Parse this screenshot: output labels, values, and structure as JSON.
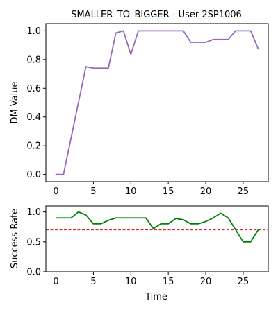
{
  "chart_data": [
    {
      "type": "line",
      "title": "SMALLER_TO_BIGGER - User 2SP1006",
      "xlabel": "",
      "ylabel": "DM Value",
      "xlim": [
        -1.35,
        28.35
      ],
      "ylim": [
        -0.05,
        1.05
      ],
      "xticks": [
        0,
        5,
        10,
        15,
        20,
        25
      ],
      "yticks": [
        0.0,
        0.2,
        0.4,
        0.6,
        0.8,
        1.0
      ],
      "ytick_labels": [
        "0.0",
        "0.2",
        "0.4",
        "0.6",
        "0.8",
        "1.0"
      ],
      "grid": false,
      "series": [
        {
          "color": "#9467bd",
          "x": [
            0,
            1,
            2,
            3,
            4,
            5,
            6,
            7,
            8,
            9,
            10,
            11,
            12,
            13,
            14,
            15,
            16,
            17,
            18,
            19,
            20,
            21,
            22,
            23,
            24,
            25,
            26,
            27
          ],
          "values": [
            0.0,
            0.0,
            0.25,
            0.5,
            0.75,
            0.74,
            0.74,
            0.74,
            0.985,
            1.0,
            0.835,
            1.0,
            1.0,
            1.0,
            1.0,
            1.0,
            1.0,
            1.0,
            0.92,
            0.92,
            0.92,
            0.94,
            0.94,
            0.94,
            1.0,
            1.0,
            1.0,
            0.875
          ]
        }
      ]
    },
    {
      "type": "line",
      "title": "",
      "xlabel": "Time",
      "ylabel": "Success Rate",
      "xlim": [
        -1.35,
        28.35
      ],
      "ylim": [
        0.0,
        1.1
      ],
      "xticks": [
        0,
        5,
        10,
        15,
        20,
        25
      ],
      "yticks": [
        0.0,
        0.5,
        1.0
      ],
      "ytick_labels": [
        "0.0",
        "0.5",
        "1.0"
      ],
      "grid": false,
      "threshold": {
        "value": 0.7,
        "color": "#d62728",
        "style": "dashed"
      },
      "series": [
        {
          "color": "#008000",
          "x": [
            0,
            1,
            2,
            3,
            4,
            5,
            6,
            7,
            8,
            9,
            10,
            11,
            12,
            13,
            14,
            15,
            16,
            17,
            18,
            19,
            20,
            21,
            22,
            23,
            24,
            25,
            26,
            27
          ],
          "values": [
            0.9,
            0.9,
            0.9,
            1.0,
            0.95,
            0.8,
            0.8,
            0.86,
            0.9,
            0.9,
            0.9,
            0.9,
            0.9,
            0.72,
            0.8,
            0.8,
            0.89,
            0.87,
            0.8,
            0.8,
            0.84,
            0.9,
            0.98,
            0.9,
            0.7,
            0.5,
            0.5,
            0.7
          ]
        }
      ]
    }
  ]
}
